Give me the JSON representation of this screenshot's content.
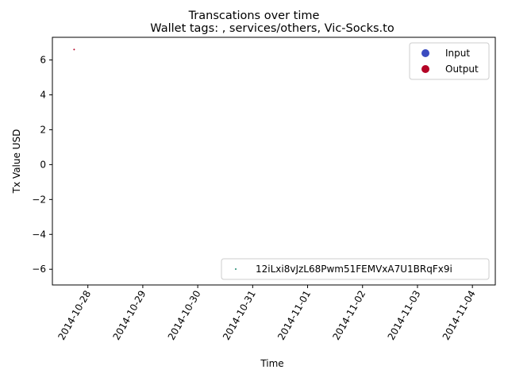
{
  "chart_data": {
    "type": "scatter",
    "title": "Transcations over time",
    "subtitle": "Wallet tags: , services/others, Vic-Socks.to",
    "xlabel": "Time",
    "ylabel": "Tx Value USD",
    "x_ticks": [
      "2014-10-28",
      "2014-10-29",
      "2014-10-30",
      "2014-10-31",
      "2014-11-01",
      "2014-11-02",
      "2014-11-03",
      "2014-11-04"
    ],
    "y_ticks": [
      -6,
      -4,
      -2,
      0,
      2,
      4,
      6
    ],
    "xlim": [
      "2014-10-27T08:30",
      "2014-11-04T10:00"
    ],
    "ylim": [
      -6.9,
      7.3
    ],
    "grid": false,
    "series": [
      {
        "name": "Input",
        "color": "#3b4cc0",
        "points": []
      },
      {
        "name": "Output",
        "color": "#b40426",
        "points": [
          {
            "x": "2014-10-27T18:00",
            "y": 6.6
          }
        ]
      }
    ],
    "legends": [
      {
        "placement": "top-right",
        "entries": [
          {
            "label": "Input",
            "color": "#3b4cc0",
            "marker": "circle"
          },
          {
            "label": "Output",
            "color": "#b40426",
            "marker": "circle"
          }
        ]
      },
      {
        "placement": "bottom-right",
        "entries": [
          {
            "label": "12iLxi8vJzL68Pwm51FEMVxA7U1BRqFx9i",
            "color": "#1f8a70",
            "marker": "dot"
          }
        ]
      }
    ]
  }
}
